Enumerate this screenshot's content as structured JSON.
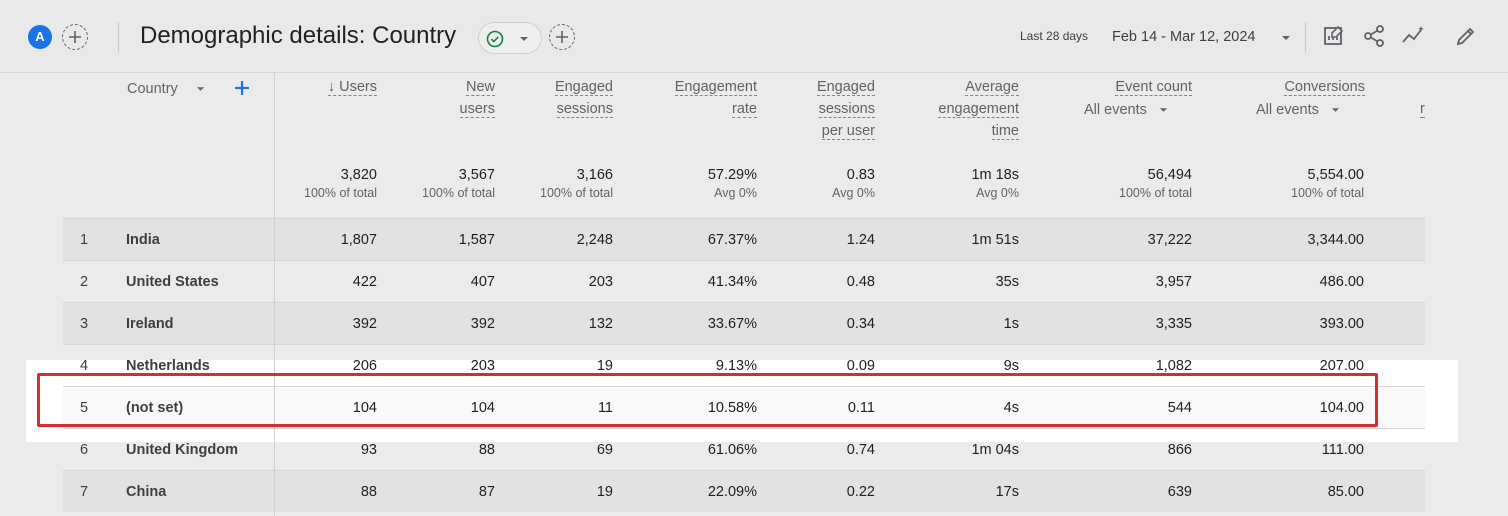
{
  "header": {
    "avatar_letter": "A",
    "title": "Demographic details: Country",
    "date_label": "Last 28 days",
    "date_range": "Feb 14 - Mar 12, 2024"
  },
  "table": {
    "dimension_label": "Country",
    "columns": [
      {
        "lines": [
          "↓ Users"
        ],
        "total": "3,820",
        "pct": "100% of total"
      },
      {
        "lines": [
          "New",
          "users"
        ],
        "total": "3,567",
        "pct": "100% of total"
      },
      {
        "lines": [
          "Engaged",
          "sessions"
        ],
        "total": "3,166",
        "pct": "100% of total"
      },
      {
        "lines": [
          "Engagement",
          "rate"
        ],
        "total": "57.29%",
        "pct": "Avg 0%"
      },
      {
        "lines": [
          "Engaged",
          "sessions",
          "per user"
        ],
        "total": "0.83",
        "pct": "Avg 0%"
      },
      {
        "lines": [
          "Average",
          "engagement",
          "time"
        ],
        "total": "1m 18s",
        "pct": "Avg 0%"
      },
      {
        "lines": [
          "Event count"
        ],
        "sub": "All events",
        "total": "56,494",
        "pct": "100% of total"
      },
      {
        "lines": [
          "Conversions"
        ],
        "sub": "All events",
        "total": "5,554.00",
        "pct": "100% of total"
      }
    ],
    "cut_header": "r",
    "rows": [
      {
        "idx": "1",
        "country": "India",
        "values": [
          "1,807",
          "1,587",
          "2,248",
          "67.37%",
          "1.24",
          "1m 51s",
          "37,222",
          "3,344.00"
        ]
      },
      {
        "idx": "2",
        "country": "United States",
        "values": [
          "422",
          "407",
          "203",
          "41.34%",
          "0.48",
          "35s",
          "3,957",
          "486.00"
        ]
      },
      {
        "idx": "3",
        "country": "Ireland",
        "values": [
          "392",
          "392",
          "132",
          "33.67%",
          "0.34",
          "1s",
          "3,335",
          "393.00"
        ]
      },
      {
        "idx": "4",
        "country": "Netherlands",
        "values": [
          "206",
          "203",
          "19",
          "9.13%",
          "0.09",
          "9s",
          "1,082",
          "207.00"
        ]
      },
      {
        "idx": "5",
        "country": "(not set)",
        "values": [
          "104",
          "104",
          "11",
          "10.58%",
          "0.11",
          "4s",
          "544",
          "104.00"
        ]
      },
      {
        "idx": "6",
        "country": "United Kingdom",
        "values": [
          "93",
          "88",
          "69",
          "61.06%",
          "0.74",
          "1m 04s",
          "866",
          "111.00"
        ]
      },
      {
        "idx": "7",
        "country": "China",
        "values": [
          "88",
          "87",
          "19",
          "22.09%",
          "0.22",
          "17s",
          "639",
          "85.00"
        ]
      }
    ]
  },
  "colors": {
    "accent": "#1a73e8",
    "highlight_border": "#d32f2f",
    "check": "#188038"
  }
}
